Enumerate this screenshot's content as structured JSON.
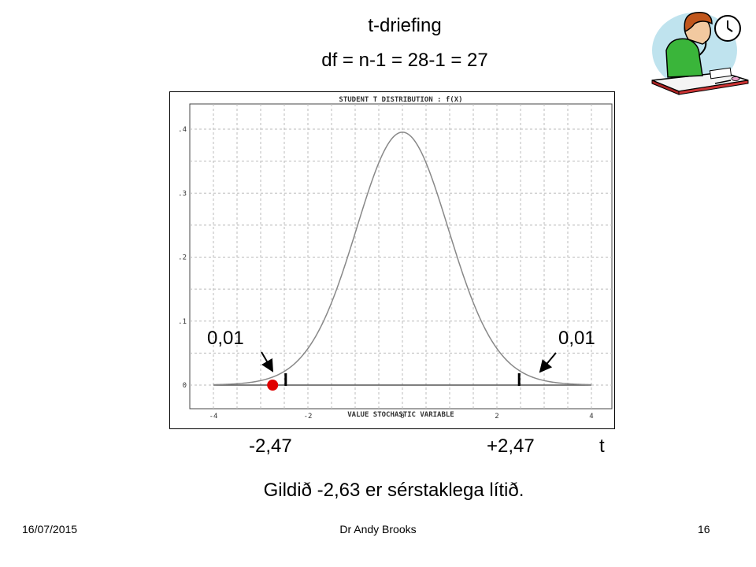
{
  "slide": {
    "title_line1": "t-driefing",
    "title_line2": "df = n-1 = 28-1 = 27",
    "tail_left_label": "0,01",
    "tail_right_label": "0,01",
    "crit_left_label": "-2,47",
    "crit_right_label": "+2,47",
    "axis_t_label": "t",
    "conclusion": "Gildið -2,63 er sérstaklega lítið.",
    "footer_date": "16/07/2015",
    "footer_author": "Dr Andy Brooks",
    "footer_page": "16"
  },
  "chart_data": {
    "type": "line",
    "title": "STUDENT T DISTRIBUTION : f(X)",
    "xlabel": "VALUE STOCHASTIC VARIABLE",
    "ylabel": "",
    "xlim": [
      -4,
      4
    ],
    "ylim": [
      0,
      0.4
    ],
    "x_ticks": [
      -4,
      -2,
      0,
      2,
      4
    ],
    "x_tick_labels": [
      "-4",
      "-2",
      "0",
      "2",
      "4"
    ],
    "y_ticks": [
      0,
      0.1,
      0.2,
      0.3,
      0.4
    ],
    "y_tick_labels": [
      "0",
      ".1",
      ".2",
      ".3",
      ".4"
    ],
    "grid": true,
    "df": 27,
    "critical_values": [
      -2.47,
      2.47
    ],
    "observed_value": -2.63,
    "tail_areas": [
      0.01,
      0.01
    ],
    "colors": {
      "curve": "#888888",
      "grid": "#bbbbbb",
      "marker": "#e00000",
      "axis": "#555555"
    }
  }
}
